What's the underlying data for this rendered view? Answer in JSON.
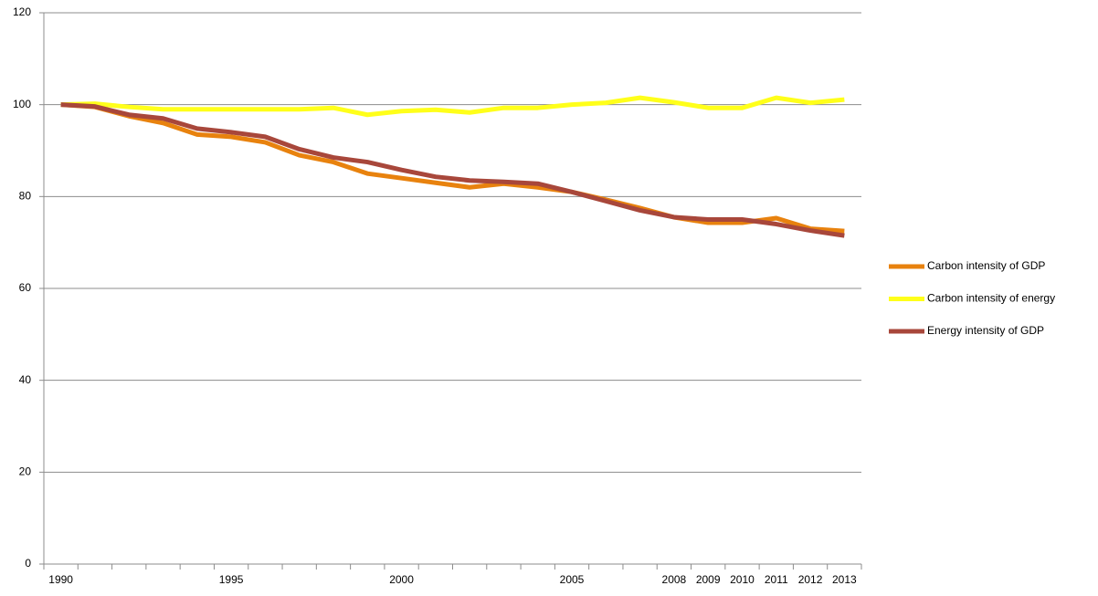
{
  "chart_data": {
    "type": "line",
    "categories": [
      "1990",
      null,
      null,
      null,
      null,
      "1995",
      null,
      null,
      null,
      null,
      "2000",
      null,
      null,
      null,
      null,
      "2005",
      null,
      null,
      "2008",
      "2009",
      "2010",
      "2011",
      "2012",
      "2013"
    ],
    "series": [
      {
        "name": "Carbon intensity of GDP",
        "color": "#e8820e",
        "values": [
          100,
          99.5,
          97.5,
          96,
          93.5,
          93,
          91.8,
          89,
          87.5,
          85,
          84,
          83,
          82,
          82.8,
          82,
          81,
          79.3,
          77.5,
          75.5,
          74.3,
          74.3,
          75.3,
          73,
          72.5
        ]
      },
      {
        "name": "Carbon intensity of energy",
        "color": "#ffff1a",
        "values": [
          100,
          100.2,
          99.5,
          99,
          99,
          99,
          99,
          99,
          99.3,
          97.8,
          98.6,
          98.9,
          98.3,
          99.3,
          99.3,
          100,
          100.4,
          101.5,
          100.5,
          99.3,
          99.3,
          101.5,
          100.4,
          101.1
        ]
      },
      {
        "name": "Energy intensity of GDP",
        "color": "#a8473b",
        "values": [
          100,
          99.6,
          97.8,
          97,
          94.8,
          94,
          93,
          90.3,
          88.5,
          87.5,
          85.8,
          84.3,
          83.5,
          83.2,
          82.8,
          81,
          79,
          77,
          75.5,
          75,
          75,
          74,
          72.6,
          71.5
        ]
      }
    ],
    "ylim": [
      0,
      120
    ],
    "yticks": [
      0,
      20,
      40,
      60,
      80,
      100,
      120
    ],
    "grid": true,
    "legend": "right"
  }
}
